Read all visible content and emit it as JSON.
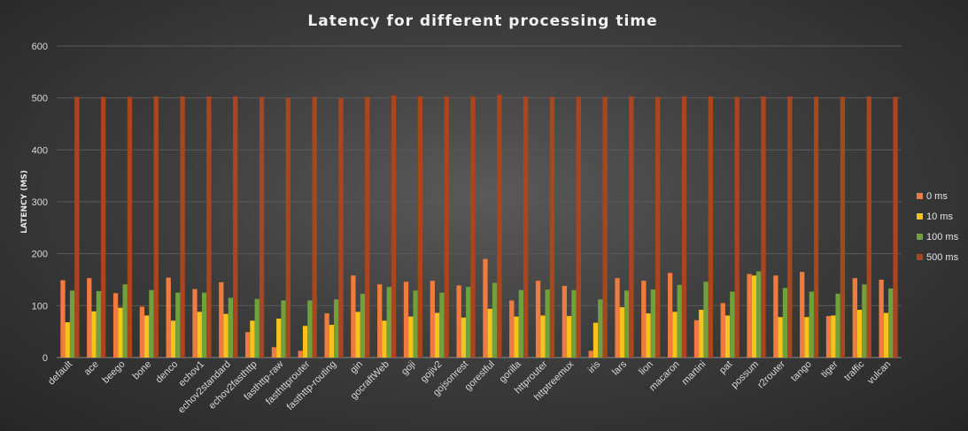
{
  "chart_data": {
    "type": "bar",
    "title": "Latency for different processing time",
    "ylabel": "LATENCY (MS)",
    "xlabel": "",
    "ylim": [
      0,
      600
    ],
    "yticks": [
      0,
      100,
      200,
      300,
      400,
      500,
      600
    ],
    "grid": true,
    "legend_position": "right",
    "categories": [
      "default",
      "ace",
      "beego",
      "bone",
      "denco",
      "echov1",
      "echov2standard",
      "echov2fasthttp",
      "fasthttp-raw",
      "fasthttprouter",
      "fasthttp-routing",
      "gin",
      "gocraftWeb",
      "goji",
      "gojiv2",
      "gojsonrest",
      "gorestful",
      "gorilla",
      "httprouter",
      "httptreemux",
      "iris",
      "lars",
      "lion",
      "macaron",
      "martini",
      "pat",
      "possum",
      "r2router",
      "tango",
      "tiger",
      "traffic",
      "vulcan"
    ],
    "series": [
      {
        "name": "0 ms",
        "color": "#ee7b3f",
        "values": [
          149,
          153,
          124,
          98,
          154,
          132,
          145,
          49,
          20,
          13,
          85,
          158,
          141,
          146,
          148,
          139,
          190,
          110,
          148,
          138,
          13,
          153,
          148,
          163,
          72,
          105,
          161,
          158,
          165,
          80,
          153,
          150
        ]
      },
      {
        "name": "10 ms",
        "color": "#f7c21a",
        "values": [
          68,
          89,
          96,
          81,
          71,
          88,
          84,
          71,
          75,
          61,
          63,
          88,
          71,
          79,
          86,
          77,
          94,
          79,
          81,
          80,
          67,
          97,
          85,
          88,
          92,
          81,
          158,
          78,
          78,
          81,
          92,
          86
        ]
      },
      {
        "name": "100 ms",
        "color": "#6fa23c",
        "values": [
          129,
          128,
          141,
          130,
          125,
          125,
          115,
          113,
          110,
          110,
          112,
          123,
          136,
          129,
          125,
          136,
          144,
          130,
          131,
          130,
          112,
          129,
          131,
          140,
          146,
          127,
          166,
          134,
          127,
          123,
          141,
          133
        ]
      },
      {
        "name": "500 ms",
        "color": "#a9461f",
        "values": [
          502,
          502,
          502,
          503,
          503,
          503,
          503,
          502,
          500,
          502,
          500,
          502,
          505,
          503,
          503,
          503,
          506,
          503,
          502,
          502,
          502,
          503,
          502,
          503,
          503,
          502,
          503,
          503,
          502,
          502,
          503,
          502
        ]
      }
    ]
  }
}
